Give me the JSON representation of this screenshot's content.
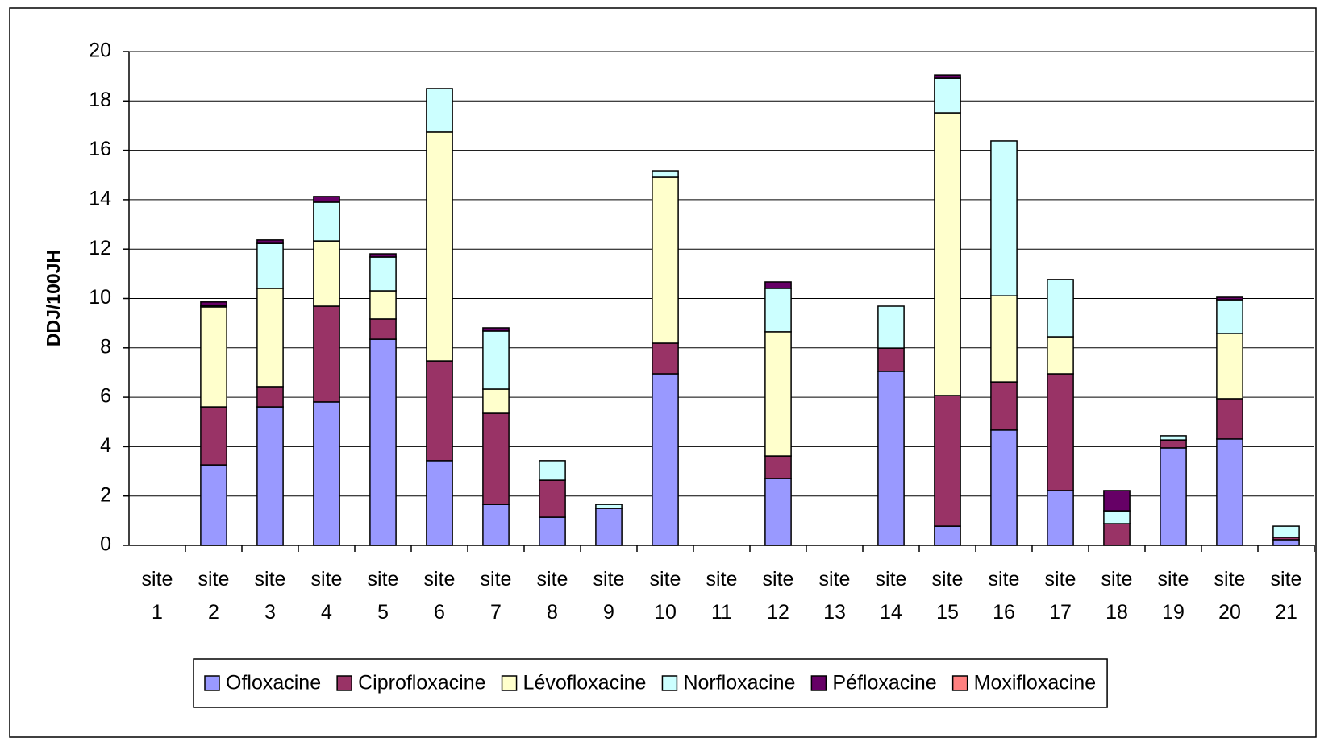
{
  "chart_data": {
    "type": "stacked_bar",
    "y_label": "DDJ/100JH",
    "categories": [
      "site 1",
      "site 2",
      "site 3",
      "site 4",
      "site 5",
      "site 6",
      "site 7",
      "site 8",
      "site 9",
      "site 10",
      "site 11",
      "site 12",
      "site 13",
      "site 14",
      "site 15",
      "site 16",
      "site 17",
      "site 18",
      "site 19",
      "site 20",
      "site 21"
    ],
    "series": [
      {
        "name": "Ofloxacine",
        "color": "#9999ff",
        "values": [
          0,
          3.26,
          5.61,
          5.81,
          8.35,
          3.43,
          1.66,
          1.14,
          1.5,
          6.95,
          0,
          2.71,
          0,
          7.05,
          0.78,
          4.67,
          2.22,
          0,
          3.95,
          4.31,
          0.23
        ]
      },
      {
        "name": "Ciprofloxacine",
        "color": "#993366",
        "values": [
          0,
          2.35,
          0.82,
          3.88,
          0.82,
          4.04,
          3.69,
          1.5,
          0,
          1.24,
          0,
          0.91,
          0,
          0.94,
          5.29,
          1.95,
          4.73,
          0.88,
          0.32,
          1.63,
          0.1
        ]
      },
      {
        "name": "Lévofloxacine",
        "color": "#ffffcc",
        "values": [
          0,
          4.05,
          3.98,
          2.64,
          1.14,
          9.27,
          0.98,
          0,
          0,
          6.72,
          0,
          5.03,
          0,
          0,
          11.45,
          3.49,
          1.5,
          0,
          0,
          2.64,
          0
        ]
      },
      {
        "name": "Norfloxacine",
        "color": "#ccffff",
        "values": [
          0,
          0.05,
          1.82,
          1.57,
          1.37,
          1.76,
          2.35,
          0.79,
          0.16,
          0.26,
          0,
          1.76,
          0,
          1.7,
          1.4,
          6.27,
          2.32,
          0.52,
          0.17,
          1.37,
          0.45
        ]
      },
      {
        "name": "Péfloxacine",
        "color": "#660066",
        "values": [
          0,
          0.15,
          0.14,
          0.23,
          0.13,
          0,
          0.13,
          0,
          0,
          0,
          0,
          0.26,
          0,
          0,
          0.13,
          0,
          0,
          0.82,
          0,
          0.1,
          0
        ]
      },
      {
        "name": "Moxifloxacine",
        "color": "#ff8080",
        "values": [
          0,
          0,
          0,
          0,
          0,
          0,
          0,
          0,
          0,
          0,
          0,
          0,
          0,
          0,
          0,
          0,
          0,
          0,
          0,
          0,
          0
        ]
      }
    ],
    "ylim": [
      0,
      20
    ],
    "yticks": [
      0,
      2,
      4,
      6,
      8,
      10,
      12,
      14,
      16,
      18,
      20
    ],
    "grid": true,
    "legend": "bottom"
  }
}
